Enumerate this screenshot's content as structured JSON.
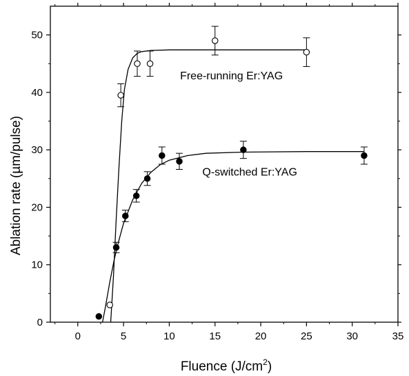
{
  "chart_data": {
    "type": "scatter",
    "title": "",
    "xlabel": "Fluence (J/cm",
    "xlabel_sup": "2",
    "xlabel_end": ")",
    "ylabel": "Ablation rate (µm/pulse)",
    "xlim": [
      -3,
      35
    ],
    "ylim": [
      0,
      55
    ],
    "xticks": [
      0,
      5,
      10,
      15,
      20,
      25,
      30,
      35
    ],
    "yticks": [
      0,
      10,
      20,
      30,
      40,
      50
    ],
    "grid": false,
    "legend": "none",
    "series": [
      {
        "name": "Free-running Er:YAG",
        "marker": "open-circle",
        "color": "#000000",
        "points": [
          {
            "x": 3.5,
            "y": 3,
            "err": 0
          },
          {
            "x": 4.7,
            "y": 39.5,
            "err": 2
          },
          {
            "x": 6.5,
            "y": 45,
            "err": 2.2
          },
          {
            "x": 7.9,
            "y": 45,
            "err": 2.2
          },
          {
            "x": 15,
            "y": 49,
            "err": 2.5
          },
          {
            "x": 25,
            "y": 47,
            "err": 2.5
          }
        ],
        "fit": [
          [
            3.6,
            0
          ],
          [
            3.9,
            8
          ],
          [
            4.2,
            18
          ],
          [
            4.5,
            27
          ],
          [
            4.8,
            35
          ],
          [
            5.1,
            40.5
          ],
          [
            5.5,
            44
          ],
          [
            6,
            46
          ],
          [
            6.5,
            46.8
          ],
          [
            7,
            47.1
          ],
          [
            8,
            47.3
          ],
          [
            10,
            47.4
          ],
          [
            15,
            47.4
          ],
          [
            20,
            47.4
          ],
          [
            25,
            47.4
          ]
        ]
      },
      {
        "name": "Q-switched Er:YAG",
        "marker": "filled-circle",
        "color": "#000000",
        "points": [
          {
            "x": 2.3,
            "y": 1,
            "err": 0
          },
          {
            "x": 4.2,
            "y": 13,
            "err": 0.9
          },
          {
            "x": 5.2,
            "y": 18.5,
            "err": 1
          },
          {
            "x": 6.4,
            "y": 22,
            "err": 1.1
          },
          {
            "x": 7.6,
            "y": 25,
            "err": 1.2
          },
          {
            "x": 9.2,
            "y": 29,
            "err": 1.5
          },
          {
            "x": 11.1,
            "y": 28,
            "err": 1.4
          },
          {
            "x": 18.1,
            "y": 30,
            "err": 1.5
          },
          {
            "x": 31.3,
            "y": 29,
            "err": 1.5
          }
        ],
        "fit": [
          [
            2.7,
            0
          ],
          [
            3,
            2.5
          ],
          [
            3.5,
            7
          ],
          [
            4,
            11
          ],
          [
            4.5,
            14.3
          ],
          [
            5,
            17.2
          ],
          [
            6,
            21.3
          ],
          [
            7,
            24.2
          ],
          [
            8,
            26.1
          ],
          [
            9,
            27.4
          ],
          [
            10,
            28.2
          ],
          [
            12,
            29
          ],
          [
            14,
            29.4
          ],
          [
            18,
            29.6
          ],
          [
            25,
            29.7
          ],
          [
            31.3,
            29.7
          ]
        ]
      }
    ],
    "annotations": [
      {
        "text": "Free-running Er:YAG",
        "x": 16.8,
        "y": 42.3
      },
      {
        "text": "Q-switched Er:YAG",
        "x": 18.8,
        "y": 25.5
      }
    ]
  }
}
